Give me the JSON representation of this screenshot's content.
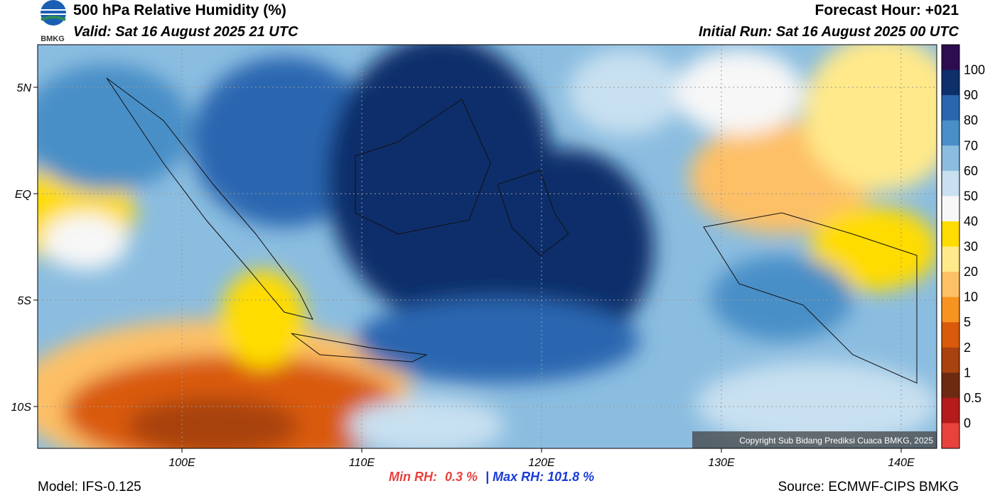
{
  "header": {
    "logo": "BMKG",
    "title": "500 hPa Relative Humidity (%)",
    "valid": "Valid: Sat 16 August 2025 21 UTC",
    "forecast": "Forecast Hour: +021",
    "initial_run": "Initial Run: Sat 16 August 2025 00 UTC"
  },
  "map": {
    "lat_labels": [
      "5N",
      "EQ",
      "5S",
      "10S"
    ],
    "lon_labels": [
      "100E",
      "110E",
      "120E",
      "130E",
      "140E"
    ],
    "copyright": "Copyright Sub Bidang Prediksi Cuaca BMKG, 2025"
  },
  "colorbar": {
    "labels": [
      "100",
      "90",
      "80",
      "70",
      "60",
      "50",
      "40",
      "30",
      "20",
      "10",
      "5",
      "2",
      "1",
      "0.5",
      "0"
    ],
    "colors": [
      "#2e0c50",
      "#0d2f6b",
      "#2a66b0",
      "#4a8fc7",
      "#8bbde0",
      "#c8e0f0",
      "#f7f7f7",
      "#ffdc00",
      "#ffe98a",
      "#fdc066",
      "#f7941f",
      "#d95a0a",
      "#a8420e",
      "#6e2a10",
      "#b51b1b",
      "#e8423d"
    ]
  },
  "footer": {
    "model": "Model: IFS-0.125",
    "min_label": "Min RH:",
    "min_value": "0.3 %",
    "separator": "|",
    "max_label": "Max RH:",
    "max_value": "101.8 %",
    "source": "Source: ECMWF-CIPS BMKG"
  }
}
